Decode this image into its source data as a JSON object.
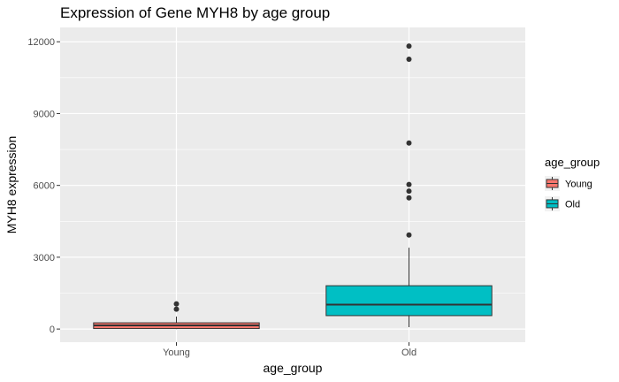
{
  "chart_data": {
    "type": "boxplot",
    "title": "Expression of Gene MYH8 by age group",
    "xlabel": "age_group",
    "ylabel": "MYH8 expression",
    "ylim": [
      -550,
      12600
    ],
    "yticks": [
      0,
      3000,
      6000,
      9000,
      12000
    ],
    "yticks_labels": [
      "0",
      "3000",
      "6000",
      "9000",
      "12000"
    ],
    "categories": [
      "Young",
      "Old"
    ],
    "grid": true,
    "legend": {
      "title": "age_group",
      "placement": "right"
    },
    "series": [
      {
        "name": "Young",
        "color": "#F8766D",
        "whisker_low": 0,
        "q1": 20,
        "median": 150,
        "q3": 260,
        "whisker_high": 520,
        "outliers": [
          830,
          1050
        ]
      },
      {
        "name": "Old",
        "color": "#00BFC4",
        "whisker_low": 80,
        "q1": 560,
        "median": 1020,
        "q3": 1810,
        "whisker_high": 3400,
        "outliers": [
          3930,
          5480,
          5760,
          6040,
          7770,
          11270,
          11820
        ]
      }
    ]
  }
}
